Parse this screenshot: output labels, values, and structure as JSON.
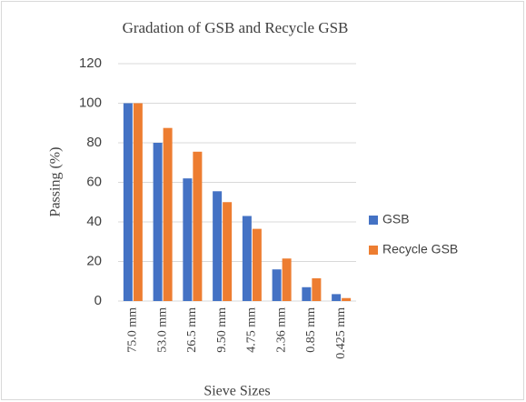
{
  "chart_data": {
    "type": "bar",
    "title": "Gradation of GSB and Recycle GSB",
    "x_label": "Sieve Sizes",
    "y_label": "Passing (%)",
    "categories": [
      "75.0 mm",
      "53.0 mm",
      "26.5 mm",
      "9.50 mm",
      "4.75 mm",
      "2.36 mm",
      "0.85 mm",
      "0.425 mm"
    ],
    "series": [
      {
        "name": "GSB",
        "color": "#4472c4",
        "values": [
          100,
          80,
          62,
          55.5,
          43,
          16,
          7,
          3.5
        ]
      },
      {
        "name": "Recycle GSB",
        "color": "#ed7d31",
        "values": [
          100,
          87.5,
          75.5,
          50,
          36.5,
          21.5,
          11.5,
          1.5
        ]
      }
    ],
    "ylim": [
      0,
      120
    ],
    "yticks": [
      0,
      20,
      40,
      60,
      80,
      100,
      120
    ],
    "grid": true,
    "legend": "right"
  }
}
